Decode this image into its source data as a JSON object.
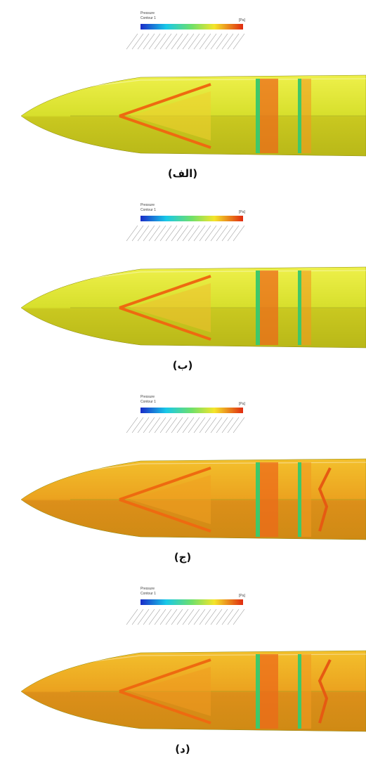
{
  "panels": [
    {
      "legend": {
        "title": "Pressure",
        "subtitle": "Contour 1",
        "unit": "[Pa]"
      },
      "caption": "(الف)"
    },
    {
      "legend": {
        "title": "Pressure",
        "subtitle": "Contour 1",
        "unit": "[Pa]"
      },
      "caption": "(ب)"
    },
    {
      "legend": {
        "title": "Pressure",
        "subtitle": "Contour 1",
        "unit": "[Pa]"
      },
      "caption": "(ج)"
    },
    {
      "legend": {
        "title": "Pressure",
        "subtitle": "Contour 1",
        "unit": "[Pa]"
      },
      "caption": "(د)"
    }
  ]
}
